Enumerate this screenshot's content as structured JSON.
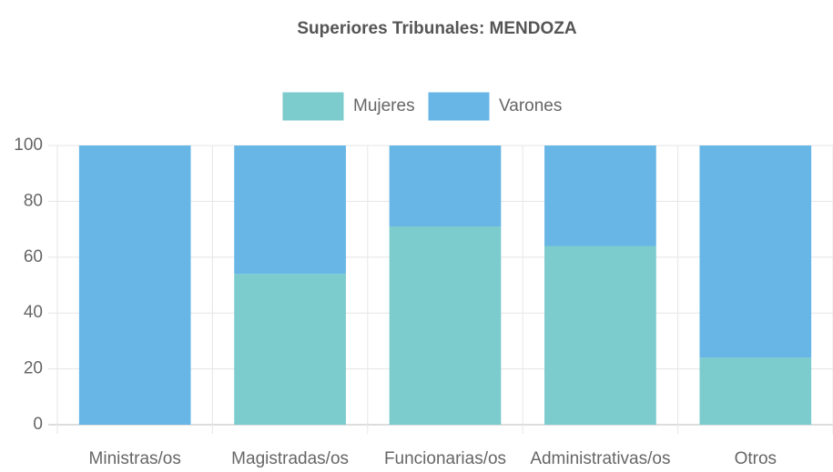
{
  "chart_data": {
    "type": "bar",
    "stacked": true,
    "title": "Superiores Tribunales: MENDOZA",
    "categories": [
      "Ministras/os",
      "Magistradas/os",
      "Funcionarias/os",
      "Administrativas/os",
      "Otros"
    ],
    "series": [
      {
        "name": "Mujeres",
        "color": "#7ccbcd",
        "values": [
          0,
          54,
          71,
          64,
          24
        ]
      },
      {
        "name": "Varones",
        "color": "#68b6e6",
        "values": [
          100,
          46,
          29,
          36,
          76
        ]
      }
    ],
    "ylim": [
      0,
      100
    ],
    "yticks": [
      0,
      20,
      40,
      60,
      80,
      100
    ],
    "grid": true,
    "legend": "top"
  }
}
